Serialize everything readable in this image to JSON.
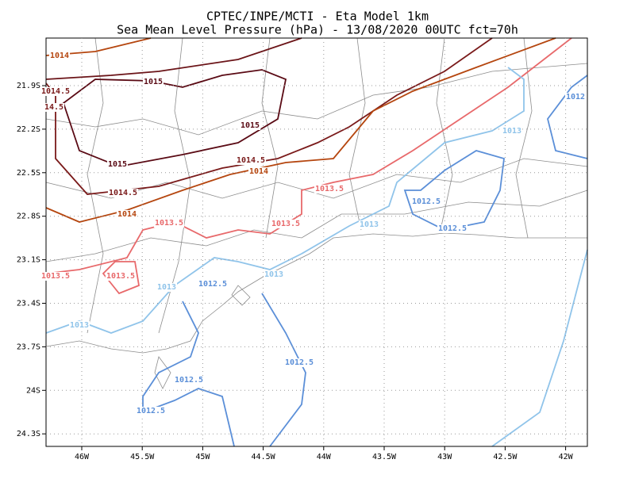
{
  "title": {
    "line1": "CPTEC/INPE/MCTI -  Eta Model 1km",
    "line2": "Sea Mean Level Pressure (hPa) - 13/08/2020 00UTC fct=70h"
  },
  "x_labels": [
    "46W",
    "45.5W",
    "45W",
    "44.5W",
    "44W",
    "43.5W",
    "43W",
    "42.5W",
    "42W"
  ],
  "y_labels": [
    "21.9S",
    "22.2S",
    "22.5S",
    "22.8S",
    "23.1S",
    "23.4S",
    "23.7S",
    "24S",
    "24.3S"
  ],
  "contour_labels": [
    "1014",
    "1015",
    "1014.5",
    "14.5",
    "1015",
    "1015",
    "1014.5",
    "1014",
    "1014.5",
    "1014",
    "1013.5",
    "1013.5",
    "1013.5",
    "1013.5",
    "1013.5",
    "1013",
    "1013",
    "1013",
    "1013",
    "1013",
    "1012.5",
    "1012.5",
    "1012.5",
    "1012.5",
    "1012.5",
    "1012.5",
    "1012"
  ]
}
